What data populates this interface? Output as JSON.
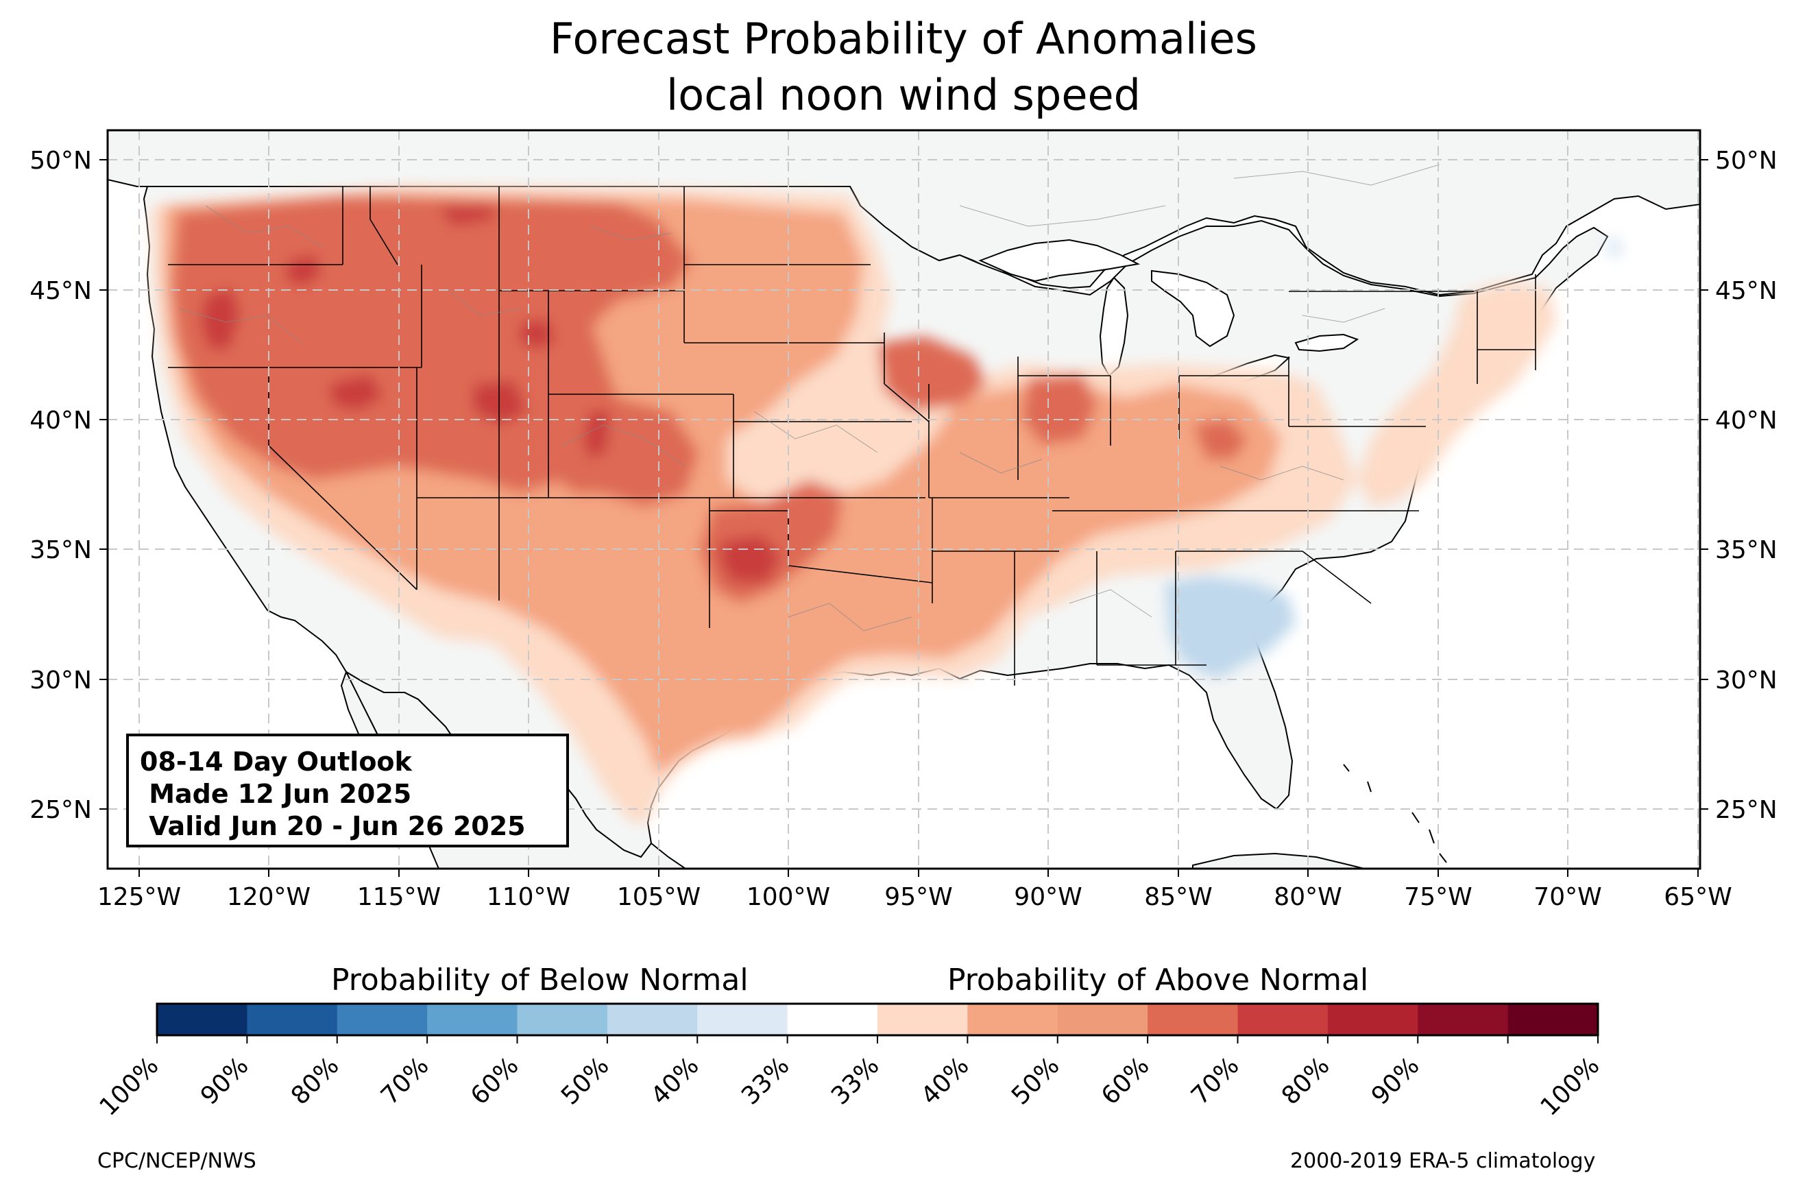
{
  "title": {
    "line1": "Forecast Probability of Anomalies",
    "line2": "local noon wind speed"
  },
  "map": {
    "projection": "plate-carree",
    "lon_range": [
      -126.2,
      -64.9
    ],
    "lat_range": [
      22.8,
      51.2
    ],
    "gridlines": "dashed",
    "lon_ticks": [
      "125°W",
      "120°W",
      "115°W",
      "110°W",
      "105°W",
      "100°W",
      "95°W",
      "90°W",
      "85°W",
      "80°W",
      "75°W",
      "70°W",
      "65°W"
    ],
    "lat_ticks": [
      "50°N",
      "45°N",
      "40°N",
      "35°N",
      "30°N",
      "25°N"
    ],
    "land_color": "#f4f6f6",
    "ocean_color": "#ffffff"
  },
  "outlook_box": {
    "line1": "08-14 Day Outlook",
    "line2": " Made 12 Jun 2025",
    "line3": " Valid Jun 20 - Jun 26 2025"
  },
  "colorbar": {
    "below_label": "Probability of Below Normal",
    "above_label": "Probability of Above Normal",
    "tick_labels": [
      "100%",
      "90%",
      "80%",
      "70%",
      "60%",
      "50%",
      "40%",
      "33%",
      "33%",
      "40%",
      "50%",
      "60%",
      "70%",
      "80%",
      "90%",
      "100%"
    ],
    "colors": [
      "#08306b",
      "#1c5a9c",
      "#3b7fbb",
      "#5fa2cf",
      "#94c3df",
      "#bfd8ec",
      "#dde9f4",
      "#ffffff",
      "#fddbc7",
      "#f4a582",
      "#ee9b79",
      "#de6a54",
      "#c93d3e",
      "#b1232e",
      "#8b0e26",
      "#67001f"
    ]
  },
  "footer": {
    "left": "CPC/NCEP/NWS",
    "right": "2000-2019 ERA-5 climatology"
  },
  "regions": [
    {
      "name": "northwest-interior",
      "category": "above",
      "band": "50-60%",
      "color": "#ee9b79"
    },
    {
      "name": "great-basin-rockies",
      "category": "above",
      "band": "60-70%",
      "color": "#de6a54"
    },
    {
      "name": "central-plains",
      "category": "above",
      "band": "60-70%",
      "color": "#de6a54"
    },
    {
      "name": "southern-plains",
      "category": "above",
      "band": "60-70%",
      "color": "#de6a54"
    },
    {
      "name": "oregon-core",
      "category": "above",
      "band": "70-80%",
      "color": "#c93d3e"
    },
    {
      "name": "nevada-utah-core",
      "category": "above",
      "band": "70-80%",
      "color": "#c93d3e"
    },
    {
      "name": "panhandle-core",
      "category": "above",
      "band": "70-80%",
      "color": "#c93d3e"
    },
    {
      "name": "midwest",
      "category": "above",
      "band": "40-60%",
      "color": "#f4a582"
    },
    {
      "name": "southeast-georgia",
      "category": "below",
      "band": "33-50%",
      "color": "#bfd8ec"
    },
    {
      "name": "maine",
      "category": "below",
      "band": "33-40%",
      "color": "#dde9f4"
    }
  ]
}
